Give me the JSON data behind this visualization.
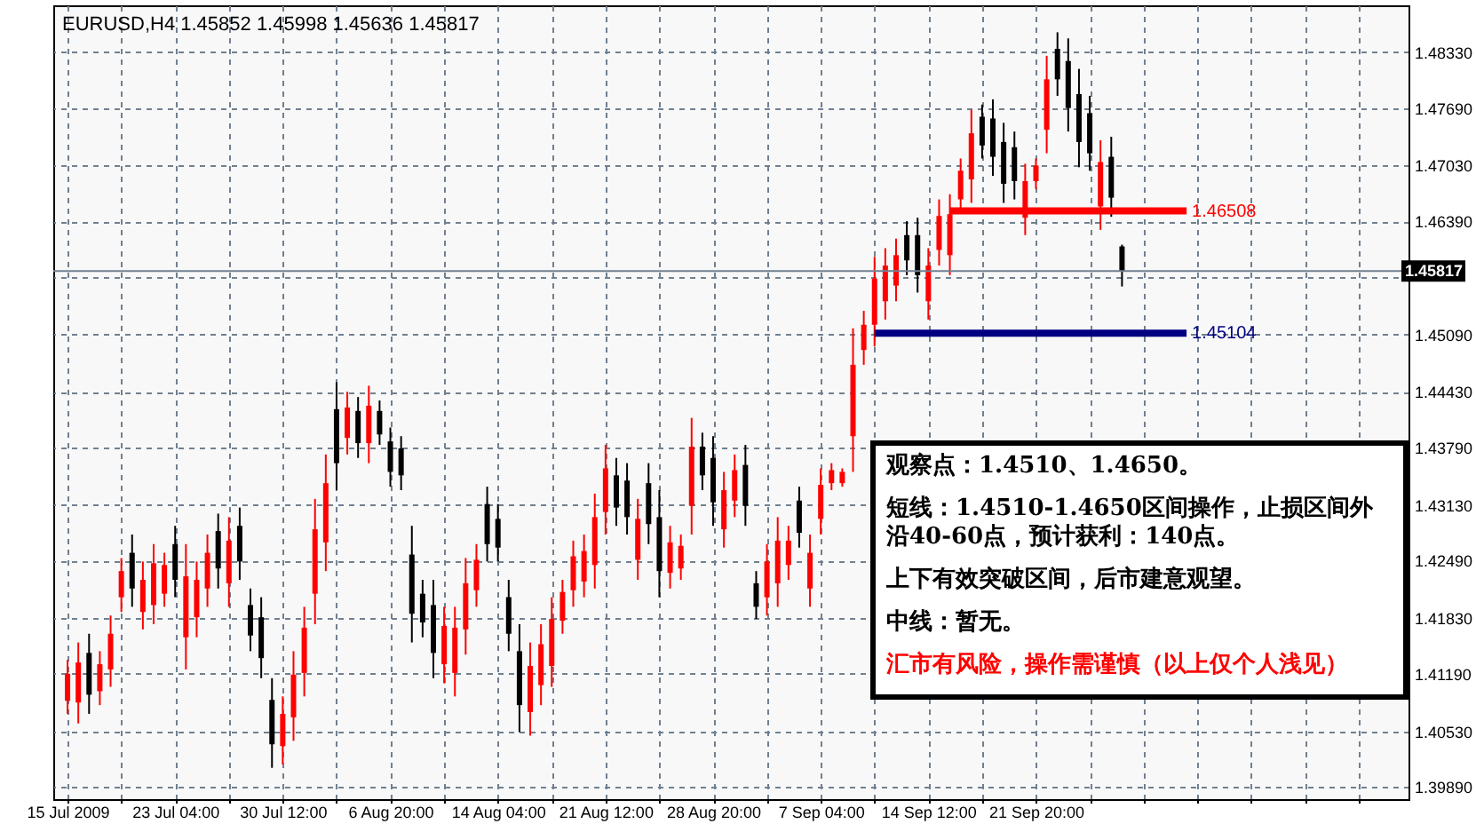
{
  "chart_data": {
    "type": "candlestick",
    "title": "EURUSD,H4  1.45852 1.45998 1.45636 1.45817",
    "categories": [
      "15 Jul 2009",
      null,
      null,
      null,
      null,
      null,
      null,
      null,
      null,
      null,
      "23 Jul 04:00",
      null,
      null,
      null,
      null,
      null,
      null,
      null,
      null,
      null,
      "30 Jul 12:00",
      null,
      null,
      null,
      null,
      null,
      null,
      null,
      null,
      null,
      "6 Aug 20:00",
      null,
      null,
      null,
      null,
      null,
      null,
      null,
      null,
      null,
      "14 Aug 04:00",
      null,
      null,
      null,
      null,
      null,
      null,
      null,
      null,
      null,
      "21 Aug 12:00",
      null,
      null,
      null,
      null,
      null,
      null,
      null,
      null,
      null,
      "28 Aug 20:00",
      null,
      null,
      null,
      null,
      null,
      null,
      null,
      null,
      null,
      "7 Sep 04:00",
      null,
      null,
      null,
      null,
      null,
      null,
      null,
      null,
      null,
      "14 Sep 12:00",
      null,
      null,
      null,
      null,
      null,
      null,
      null,
      null,
      null,
      "21 Sep 20:00",
      null,
      null,
      null,
      null,
      null,
      null,
      null,
      null,
      null,
      null,
      null,
      null,
      null,
      null,
      null,
      null,
      null,
      null,
      null,
      null,
      null,
      null,
      null,
      null,
      null,
      null,
      null,
      null,
      null,
      null,
      null,
      null,
      null
    ],
    "ohlc": [
      [
        1.4088,
        1.4135,
        1.4073,
        1.4119
      ],
      [
        1.4086,
        1.4155,
        1.4062,
        1.4132
      ],
      [
        1.4143,
        1.4165,
        1.4073,
        1.4095
      ],
      [
        1.4099,
        1.4145,
        1.4083,
        1.413
      ],
      [
        1.4124,
        1.4186,
        1.4104,
        1.4165
      ],
      [
        1.4207,
        1.4252,
        1.419,
        1.4237
      ],
      [
        1.4258,
        1.4279,
        1.4196,
        1.4217
      ],
      [
        1.419,
        1.4248,
        1.417,
        1.4227
      ],
      [
        1.4198,
        1.4268,
        1.4176,
        1.4246
      ],
      [
        1.4211,
        1.4258,
        1.4196,
        1.4244
      ],
      [
        1.4268,
        1.4289,
        1.4207,
        1.4227
      ],
      [
        1.4161,
        1.4268,
        1.4124,
        1.4231
      ],
      [
        1.4184,
        1.4248,
        1.4161,
        1.4227
      ],
      [
        1.4217,
        1.4279,
        1.4196,
        1.4258
      ],
      [
        1.4283,
        1.4303,
        1.4217,
        1.424
      ],
      [
        1.4223,
        1.4299,
        1.4196,
        1.4272
      ],
      [
        1.4289,
        1.431,
        1.4227,
        1.4248
      ],
      [
        1.4198,
        1.4217,
        1.4145,
        1.4163
      ],
      [
        1.4184,
        1.4207,
        1.4114,
        1.4137
      ],
      [
        1.4089,
        1.4114,
        1.4011,
        1.4038
      ],
      [
        1.4036,
        1.4093,
        1.4015,
        1.4073
      ],
      [
        1.4069,
        1.4145,
        1.4042,
        1.4118
      ],
      [
        1.412,
        1.4196,
        1.4093,
        1.4172
      ],
      [
        1.4211,
        1.432,
        1.4176,
        1.4285
      ],
      [
        1.427,
        1.4371,
        1.4237,
        1.4338
      ],
      [
        1.4423,
        1.4454,
        1.433,
        1.4361
      ],
      [
        1.439,
        1.4443,
        1.4371,
        1.4425
      ],
      [
        1.4421,
        1.4437,
        1.4367,
        1.4384
      ],
      [
        1.4384,
        1.445,
        1.4361,
        1.4427
      ],
      [
        1.4421,
        1.4433,
        1.4382,
        1.4394
      ],
      [
        1.4386,
        1.4402,
        1.4334,
        1.4351
      ],
      [
        1.4378,
        1.4392,
        1.433,
        1.4347
      ],
      [
        1.4256,
        1.4289,
        1.4155,
        1.4188
      ],
      [
        1.4211,
        1.4227,
        1.4161,
        1.4178
      ],
      [
        1.4198,
        1.4227,
        1.4114,
        1.4143
      ],
      [
        1.413,
        1.4196,
        1.4108,
        1.4174
      ],
      [
        1.412,
        1.4196,
        1.4093,
        1.4172
      ],
      [
        1.417,
        1.4252,
        1.4141,
        1.4223
      ],
      [
        1.4215,
        1.4268,
        1.4196,
        1.425
      ],
      [
        1.4314,
        1.4334,
        1.4248,
        1.4268
      ],
      [
        1.4297,
        1.4314,
        1.4248,
        1.4264
      ],
      [
        1.4207,
        1.4227,
        1.4145,
        1.4165
      ],
      [
        1.4145,
        1.4176,
        1.4052,
        1.4083
      ],
      [
        1.4075,
        1.4155,
        1.4048,
        1.4128
      ],
      [
        1.4106,
        1.4176,
        1.4083,
        1.4153
      ],
      [
        1.4128,
        1.4207,
        1.4104,
        1.4182
      ],
      [
        1.418,
        1.4227,
        1.4165,
        1.4213
      ],
      [
        1.4215,
        1.4272,
        1.4196,
        1.4254
      ],
      [
        1.4225,
        1.4279,
        1.4207,
        1.426
      ],
      [
        1.4244,
        1.4326,
        1.4217,
        1.4299
      ],
      [
        1.4305,
        1.4382,
        1.4279,
        1.4355
      ],
      [
        1.4347,
        1.4367,
        1.4289,
        1.431
      ],
      [
        1.4341,
        1.4361,
        1.4279,
        1.4299
      ],
      [
        1.425,
        1.432,
        1.4227,
        1.4297
      ],
      [
        1.4338,
        1.4361,
        1.4268,
        1.4291
      ],
      [
        1.4299,
        1.433,
        1.4207,
        1.4237
      ],
      [
        1.4235,
        1.4289,
        1.4217,
        1.427
      ],
      [
        1.424,
        1.4279,
        1.4227,
        1.4266
      ],
      [
        1.4312,
        1.4413,
        1.4279,
        1.438
      ],
      [
        1.438,
        1.4396,
        1.433,
        1.4347
      ],
      [
        1.4367,
        1.4392,
        1.4289,
        1.4316
      ],
      [
        1.4285,
        1.4351,
        1.4264,
        1.433
      ],
      [
        1.4318,
        1.4371,
        1.4299,
        1.4353
      ],
      [
        1.4359,
        1.4382,
        1.4289,
        1.4312
      ],
      [
        1.4223,
        1.4237,
        1.4182,
        1.4196
      ],
      [
        1.4207,
        1.4268,
        1.4186,
        1.4248
      ],
      [
        1.4223,
        1.4299,
        1.4196,
        1.4272
      ],
      [
        1.4244,
        1.4289,
        1.4227,
        1.4272
      ],
      [
        1.4318,
        1.4334,
        1.4264,
        1.4281
      ],
      [
        1.4217,
        1.4279,
        1.4196,
        1.4258
      ],
      [
        1.4297,
        1.4355,
        1.4279,
        1.4336
      ],
      [
        1.4338,
        1.4361,
        1.433,
        1.4353
      ],
      [
        1.4338,
        1.4355,
        1.4334,
        1.4351
      ],
      [
        1.4392,
        1.4516,
        1.4351,
        1.4474
      ],
      [
        1.4491,
        1.4536,
        1.4474,
        1.452
      ],
      [
        1.452,
        1.4598,
        1.4495,
        1.4573
      ],
      [
        1.4547,
        1.4608,
        1.4526,
        1.4588
      ],
      [
        1.4565,
        1.4619,
        1.4547,
        1.46
      ],
      [
        1.4623,
        1.4639,
        1.4577,
        1.4594
      ],
      [
        1.4623,
        1.4643,
        1.4557,
        1.4577
      ],
      [
        1.4547,
        1.4608,
        1.4526,
        1.4588
      ],
      [
        1.4606,
        1.4664,
        1.4588,
        1.4645
      ],
      [
        1.46,
        1.467,
        1.4577,
        1.4647
      ],
      [
        1.4664,
        1.4711,
        1.4649,
        1.4697
      ],
      [
        1.4687,
        1.4767,
        1.466,
        1.474
      ],
      [
        1.4759,
        1.4773,
        1.4711,
        1.4726
      ],
      [
        1.4757,
        1.4779,
        1.4691,
        1.4713
      ],
      [
        1.473,
        1.4752,
        1.466,
        1.4682
      ],
      [
        1.4724,
        1.4742,
        1.4664,
        1.4685
      ],
      [
        1.4643,
        1.4705,
        1.4623,
        1.4685
      ],
      [
        1.4685,
        1.4711,
        1.4676,
        1.4703
      ],
      [
        1.4744,
        1.4829,
        1.4717,
        1.4802
      ],
      [
        1.4837,
        1.4856,
        1.4783,
        1.4802
      ],
      [
        1.4823,
        1.4849,
        1.4742,
        1.4769
      ],
      [
        1.4785,
        1.4814,
        1.4701,
        1.473
      ],
      [
        1.4763,
        1.4783,
        1.4697,
        1.4717
      ],
      [
        1.4656,
        1.4732,
        1.4629,
        1.4707
      ],
      [
        1.4713,
        1.4736,
        1.4644,
        1.4666
      ],
      [
        1.461,
        1.4612,
        1.4564,
        1.4582
      ],
      null,
      null,
      null,
      null,
      null,
      null,
      null,
      null,
      null,
      null,
      null,
      null,
      null,
      null,
      null,
      null,
      null,
      null,
      null,
      null,
      null,
      null,
      null,
      null,
      null
    ],
    "colors": [
      "#ff0000",
      "#ff0000",
      "#000000",
      "#ff0000",
      "#ff0000",
      "#ff0000",
      "#000000",
      "#ff0000",
      "#ff0000",
      "#ff0000",
      "#000000",
      "#ff0000",
      "#ff0000",
      "#ff0000",
      "#000000",
      "#ff0000",
      "#000000",
      "#000000",
      "#000000",
      "#000000",
      "#ff0000",
      "#ff0000",
      "#ff0000",
      "#ff0000",
      "#ff0000",
      "#000000",
      "#ff0000",
      "#000000",
      "#ff0000",
      "#000000",
      "#000000",
      "#000000",
      "#000000",
      "#000000",
      "#000000",
      "#ff0000",
      "#ff0000",
      "#ff0000",
      "#ff0000",
      "#000000",
      "#000000",
      "#000000",
      "#000000",
      "#ff0000",
      "#ff0000",
      "#ff0000",
      "#ff0000",
      "#ff0000",
      "#ff0000",
      "#ff0000",
      "#ff0000",
      "#000000",
      "#000000",
      "#ff0000",
      "#000000",
      "#000000",
      "#ff0000",
      "#ff0000",
      "#ff0000",
      "#000000",
      "#000000",
      "#ff0000",
      "#ff0000",
      "#000000",
      "#000000",
      "#ff0000",
      "#ff0000",
      "#ff0000",
      "#000000",
      "#ff0000",
      "#ff0000",
      "#ff0000",
      "#ff0000",
      "#ff0000",
      "#ff0000",
      "#ff0000",
      "#ff0000",
      "#ff0000",
      "#000000",
      "#000000",
      "#ff0000",
      "#ff0000",
      "#ff0000",
      "#ff0000",
      "#ff0000",
      "#000000",
      "#000000",
      "#000000",
      "#000000",
      "#ff0000",
      "#ff0000",
      "#ff0000",
      "#000000",
      "#000000",
      "#000000",
      "#000000",
      "#ff0000",
      "#000000",
      "#000000",
      null,
      null,
      null,
      null,
      null,
      null,
      null,
      null,
      null,
      null,
      null,
      null,
      null,
      null,
      null,
      null,
      null,
      null,
      null,
      null,
      null,
      null,
      null,
      null,
      null
    ],
    "series": [
      {
        "type": "line",
        "color": "#ff0000",
        "values": [
          null,
          null,
          null,
          null,
          null,
          null,
          null,
          null,
          null,
          null,
          null,
          null,
          null,
          null,
          null,
          null,
          null,
          null,
          null,
          null,
          null,
          null,
          null,
          null,
          null,
          null,
          null,
          null,
          null,
          null,
          null,
          null,
          null,
          null,
          null,
          null,
          null,
          null,
          null,
          null,
          null,
          null,
          null,
          null,
          null,
          null,
          null,
          null,
          null,
          null,
          null,
          null,
          null,
          null,
          null,
          null,
          null,
          null,
          null,
          null,
          null,
          null,
          null,
          null,
          null,
          null,
          null,
          null,
          null,
          null,
          null,
          null,
          null,
          null,
          null,
          null,
          null,
          null,
          null,
          null,
          null,
          null,
          1.46508,
          1.46508,
          1.46508,
          1.46508,
          1.46508,
          1.46508,
          1.46508,
          1.46508,
          1.46508,
          1.46508,
          1.46508,
          1.46508,
          1.46508,
          1.46508,
          1.46508,
          1.46508,
          1.46508,
          1.46508,
          1.46508,
          1.46508,
          1.46508,
          1.46508,
          1.46508,
          null,
          null,
          null,
          null,
          null,
          null,
          null,
          null,
          null,
          null,
          null,
          null,
          null,
          null,
          null,
          null,
          null,
          null,
          null
        ],
        "value_labels": [
          null,
          null,
          null,
          null,
          null,
          null,
          null,
          null,
          null,
          null,
          null,
          null,
          null,
          null,
          null,
          null,
          null,
          null,
          null,
          null,
          null,
          null,
          null,
          null,
          null,
          null,
          null,
          null,
          null,
          null,
          null,
          null,
          null,
          null,
          null,
          null,
          null,
          null,
          null,
          null,
          null,
          null,
          null,
          null,
          null,
          null,
          null,
          null,
          null,
          null,
          null,
          null,
          null,
          null,
          null,
          null,
          null,
          null,
          null,
          null,
          null,
          null,
          null,
          null,
          null,
          null,
          null,
          null,
          null,
          null,
          null,
          null,
          null,
          null,
          null,
          null,
          null,
          null,
          null,
          null,
          null,
          null,
          null,
          null,
          null,
          null,
          null,
          null,
          null,
          null,
          null,
          null,
          null,
          null,
          null,
          null,
          null,
          null,
          null,
          null,
          null,
          null,
          null,
          null,
          "1.46508",
          null,
          null,
          null,
          null,
          null,
          null,
          null,
          null,
          null,
          null,
          null,
          null,
          null,
          null,
          null,
          null,
          null,
          null,
          null
        ]
      },
      {
        "type": "line",
        "color": "#000080",
        "values": [
          null,
          null,
          null,
          null,
          null,
          null,
          null,
          null,
          null,
          null,
          null,
          null,
          null,
          null,
          null,
          null,
          null,
          null,
          null,
          null,
          null,
          null,
          null,
          null,
          null,
          null,
          null,
          null,
          null,
          null,
          null,
          null,
          null,
          null,
          null,
          null,
          null,
          null,
          null,
          null,
          null,
          null,
          null,
          null,
          null,
          null,
          null,
          null,
          null,
          null,
          null,
          null,
          null,
          null,
          null,
          null,
          null,
          null,
          null,
          null,
          null,
          null,
          null,
          null,
          null,
          null,
          null,
          null,
          null,
          null,
          null,
          null,
          null,
          null,
          null,
          1.45104,
          1.45104,
          1.45104,
          1.45104,
          1.45104,
          1.45104,
          1.45104,
          1.45104,
          1.45104,
          1.45104,
          1.45104,
          1.45104,
          1.45104,
          1.45104,
          1.45104,
          1.45104,
          1.45104,
          1.45104,
          1.45104,
          1.45104,
          1.45104,
          1.45104,
          1.45104,
          1.45104,
          1.45104,
          1.45104,
          1.45104,
          1.45104,
          1.45104,
          1.45104,
          null,
          null,
          null,
          null,
          null,
          null,
          null,
          null,
          null,
          null,
          null,
          null,
          null,
          null,
          null,
          null,
          null,
          null,
          null
        ],
        "value_labels": [
          null,
          null,
          null,
          null,
          null,
          null,
          null,
          null,
          null,
          null,
          null,
          null,
          null,
          null,
          null,
          null,
          null,
          null,
          null,
          null,
          null,
          null,
          null,
          null,
          null,
          null,
          null,
          null,
          null,
          null,
          null,
          null,
          null,
          null,
          null,
          null,
          null,
          null,
          null,
          null,
          null,
          null,
          null,
          null,
          null,
          null,
          null,
          null,
          null,
          null,
          null,
          null,
          null,
          null,
          null,
          null,
          null,
          null,
          null,
          null,
          null,
          null,
          null,
          null,
          null,
          null,
          null,
          null,
          null,
          null,
          null,
          null,
          null,
          null,
          null,
          null,
          null,
          null,
          null,
          null,
          null,
          null,
          null,
          null,
          null,
          null,
          null,
          null,
          null,
          null,
          null,
          null,
          null,
          null,
          null,
          null,
          null,
          null,
          null,
          null,
          null,
          null,
          null,
          null,
          "1.45104",
          null,
          null,
          null,
          null,
          null,
          null,
          null,
          null,
          null,
          null,
          null,
          null,
          null,
          null,
          null,
          null,
          null,
          null,
          null
        ]
      }
    ],
    "ref_lines": [
      {
        "axis": "y",
        "value": 1.45817,
        "label": "1.45817",
        "color": "#708090"
      }
    ],
    "ylim": [
      1.3975,
      1.4887
    ],
    "yticks": [
      {
        "value": 1.3989,
        "label": "1.39890"
      },
      {
        "value": 1.4053,
        "label": "1.40530"
      },
      {
        "value": 1.4119,
        "label": "1.41190"
      },
      {
        "value": 1.4183,
        "label": "1.41830"
      },
      {
        "value": 1.4249,
        "label": "1.42490"
      },
      {
        "value": 1.4313,
        "label": "1.43130"
      },
      {
        "value": 1.4379,
        "label": "1.43790"
      },
      {
        "value": 1.4443,
        "label": "1.44430"
      },
      {
        "value": 1.4509,
        "label": "1.45090"
      },
      {
        "value": 1.4575,
        "label": null
      },
      {
        "value": 1.4639,
        "label": "1.46390"
      },
      {
        "value": 1.4703,
        "label": "1.47030"
      },
      {
        "value": 1.4769,
        "label": "1.47690"
      },
      {
        "value": 1.4833,
        "label": "1.48330"
      }
    ],
    "grid": true,
    "annotations": [
      "观察点：1.4510、1.4650。",
      "短线：1.4510-1.4650区间操作，止损区间外沿40-60点，预计获利：140点。",
      "上下有效突破区间，后市建意观望。",
      "中线：暂无。",
      "汇市有风险，操作需谨慎（以上仅个人浅见）"
    ]
  }
}
